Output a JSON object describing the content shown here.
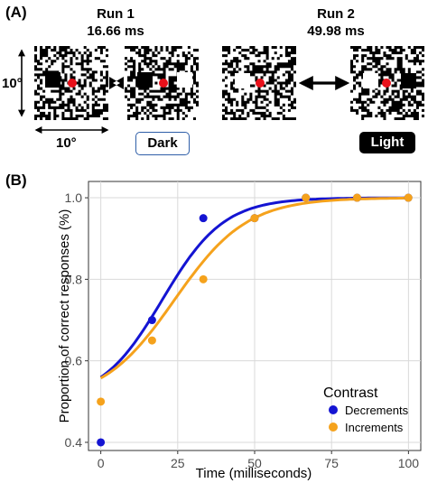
{
  "panel_a": {
    "label": "(A)",
    "run1": {
      "title": "Run 1",
      "duration": "16.66 ms"
    },
    "run2": {
      "title": "Run 2",
      "duration": "49.98 ms"
    },
    "height_label": "10°",
    "width_label": "10°",
    "dark_label": "Dark",
    "light_label": "Light",
    "colors": {
      "fixation": "#e8101a",
      "dark_border": "#2f5fa8"
    }
  },
  "panel_b": {
    "label": "(B)",
    "legend_title": "Contrast"
  },
  "chart_data": {
    "type": "scatter",
    "xlabel": "Time (milliseconds)",
    "ylabel": "Proportion of correct responses (%)",
    "xlim": [
      -4,
      104
    ],
    "ylim": [
      0.38,
      1.04
    ],
    "x_ticks": [
      "0",
      "25",
      "50",
      "75",
      "100"
    ],
    "y_ticks": [
      "0.4",
      "0.6",
      "0.8",
      "1.0"
    ],
    "legend_position": "bottom-right",
    "grid": true,
    "series": [
      {
        "name": "Decrements",
        "color": "#1414d2",
        "points": [
          [
            0,
            0.4
          ],
          [
            16.66,
            0.7
          ],
          [
            33.32,
            0.95
          ],
          [
            49.98,
            0.95
          ],
          [
            66.64,
            1.0
          ],
          [
            83.3,
            1.0
          ],
          [
            99.96,
            1.0
          ]
        ],
        "curve": {
          "x0": 20,
          "k": 0.1
        }
      },
      {
        "name": "Increments",
        "color": "#f5a21c",
        "points": [
          [
            0,
            0.5
          ],
          [
            16.66,
            0.65
          ],
          [
            33.32,
            0.8
          ],
          [
            49.98,
            0.95
          ],
          [
            66.64,
            1.0
          ],
          [
            83.3,
            1.0
          ],
          [
            99.96,
            1.0
          ]
        ],
        "curve": {
          "x0": 24,
          "k": 0.085
        }
      }
    ]
  }
}
